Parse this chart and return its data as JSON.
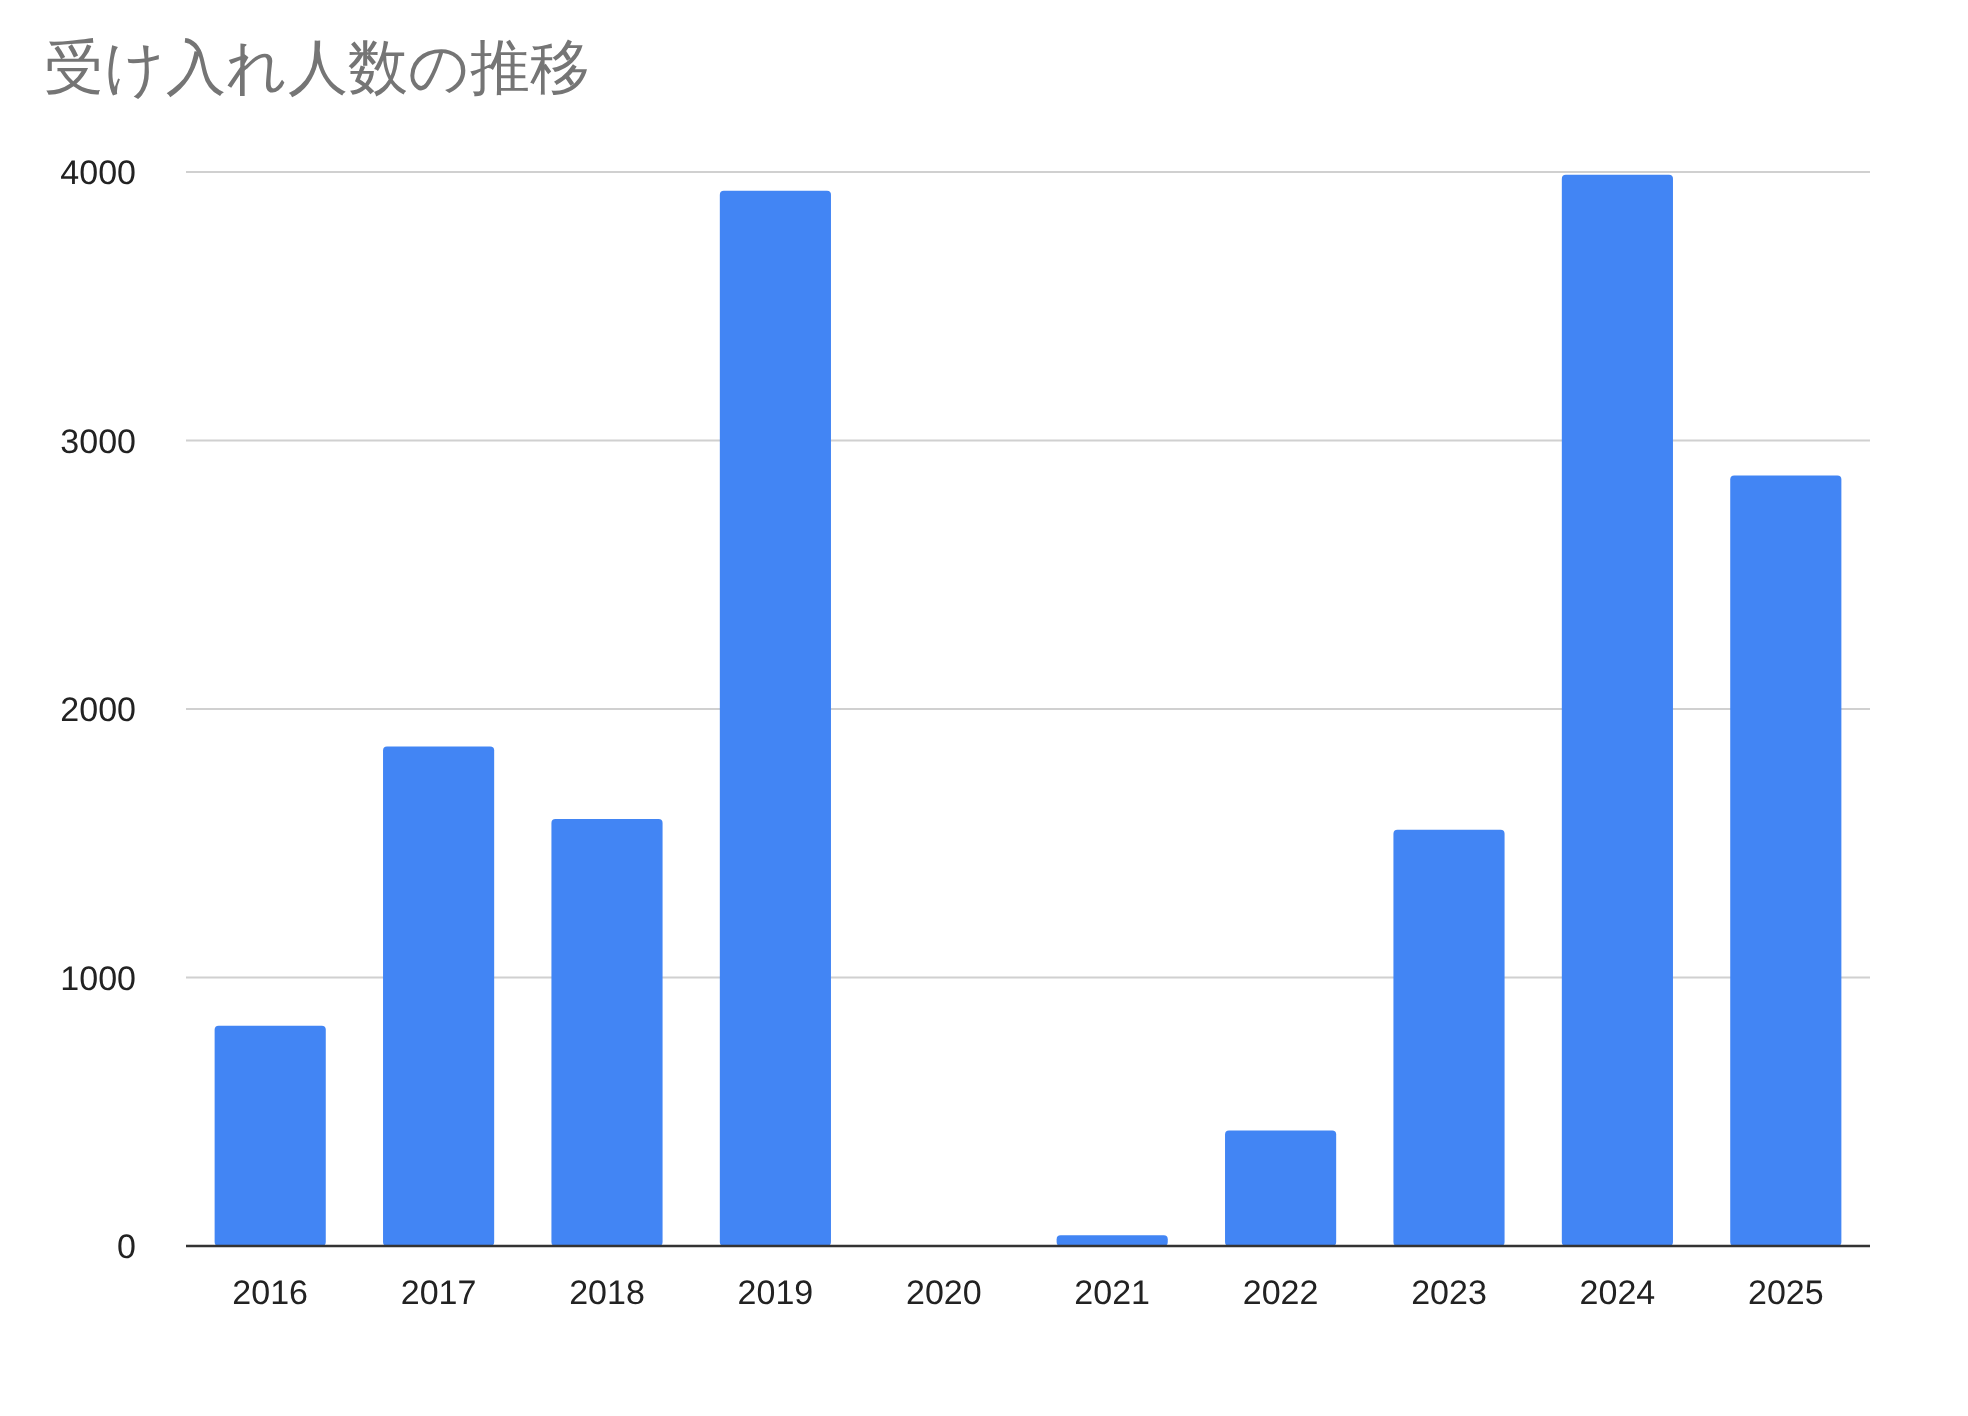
{
  "chart_data": {
    "type": "bar",
    "title": "受け入れ人数の推移",
    "categories": [
      "2016",
      "2017",
      "2018",
      "2019",
      "2020",
      "2021",
      "2022",
      "2023",
      "2024",
      "2025"
    ],
    "values": [
      820,
      1860,
      1590,
      3930,
      0,
      40,
      430,
      1550,
      3990,
      2870
    ],
    "color": "#4285f4",
    "ylim": [
      0,
      4000
    ],
    "yticks": [
      0,
      1000,
      2000,
      3000,
      4000
    ],
    "grid": "y"
  }
}
